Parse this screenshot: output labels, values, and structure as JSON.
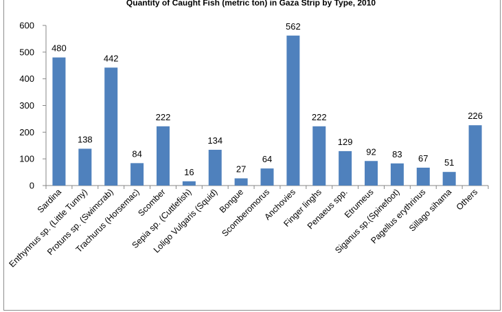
{
  "chart_data": {
    "type": "bar",
    "title": "Quantity of Caught Fish (metric ton) in Gaza Strip by Type, 2010",
    "xlabel": "",
    "ylabel": "",
    "ylim": [
      0,
      600
    ],
    "yticks": [
      0,
      100,
      200,
      300,
      400,
      500,
      600
    ],
    "grid": false,
    "legend": "none",
    "bar_color": "#4f81bd",
    "categories": [
      "Sardina",
      "Enthynnus sp. (Little Tunny)",
      "Protuns sp. (Swimcrab)",
      "Trachurus (Horsemac)",
      "Scomber",
      "Sepia sp. (Cuttlefish)",
      "Loligo Vulgaris (Squid)",
      "Bongue",
      "Scomberomorus",
      "Anchovies",
      "Finger linghs",
      "Penaeus spp.",
      "Etrumeus",
      "Siganus sp.(Spinefoot)",
      "Pagellus erythrinus",
      "Sillago sihama",
      "Others"
    ],
    "values": [
      480,
      138,
      442,
      84,
      222,
      16,
      134,
      27,
      64,
      562,
      222,
      129,
      92,
      83,
      67,
      51,
      226
    ],
    "data_labels": [
      "480",
      "138",
      "442",
      "84",
      "222",
      "16",
      "134",
      "27",
      "64",
      "562",
      "222",
      "129",
      "92",
      "83",
      "67",
      "51",
      "226"
    ]
  }
}
